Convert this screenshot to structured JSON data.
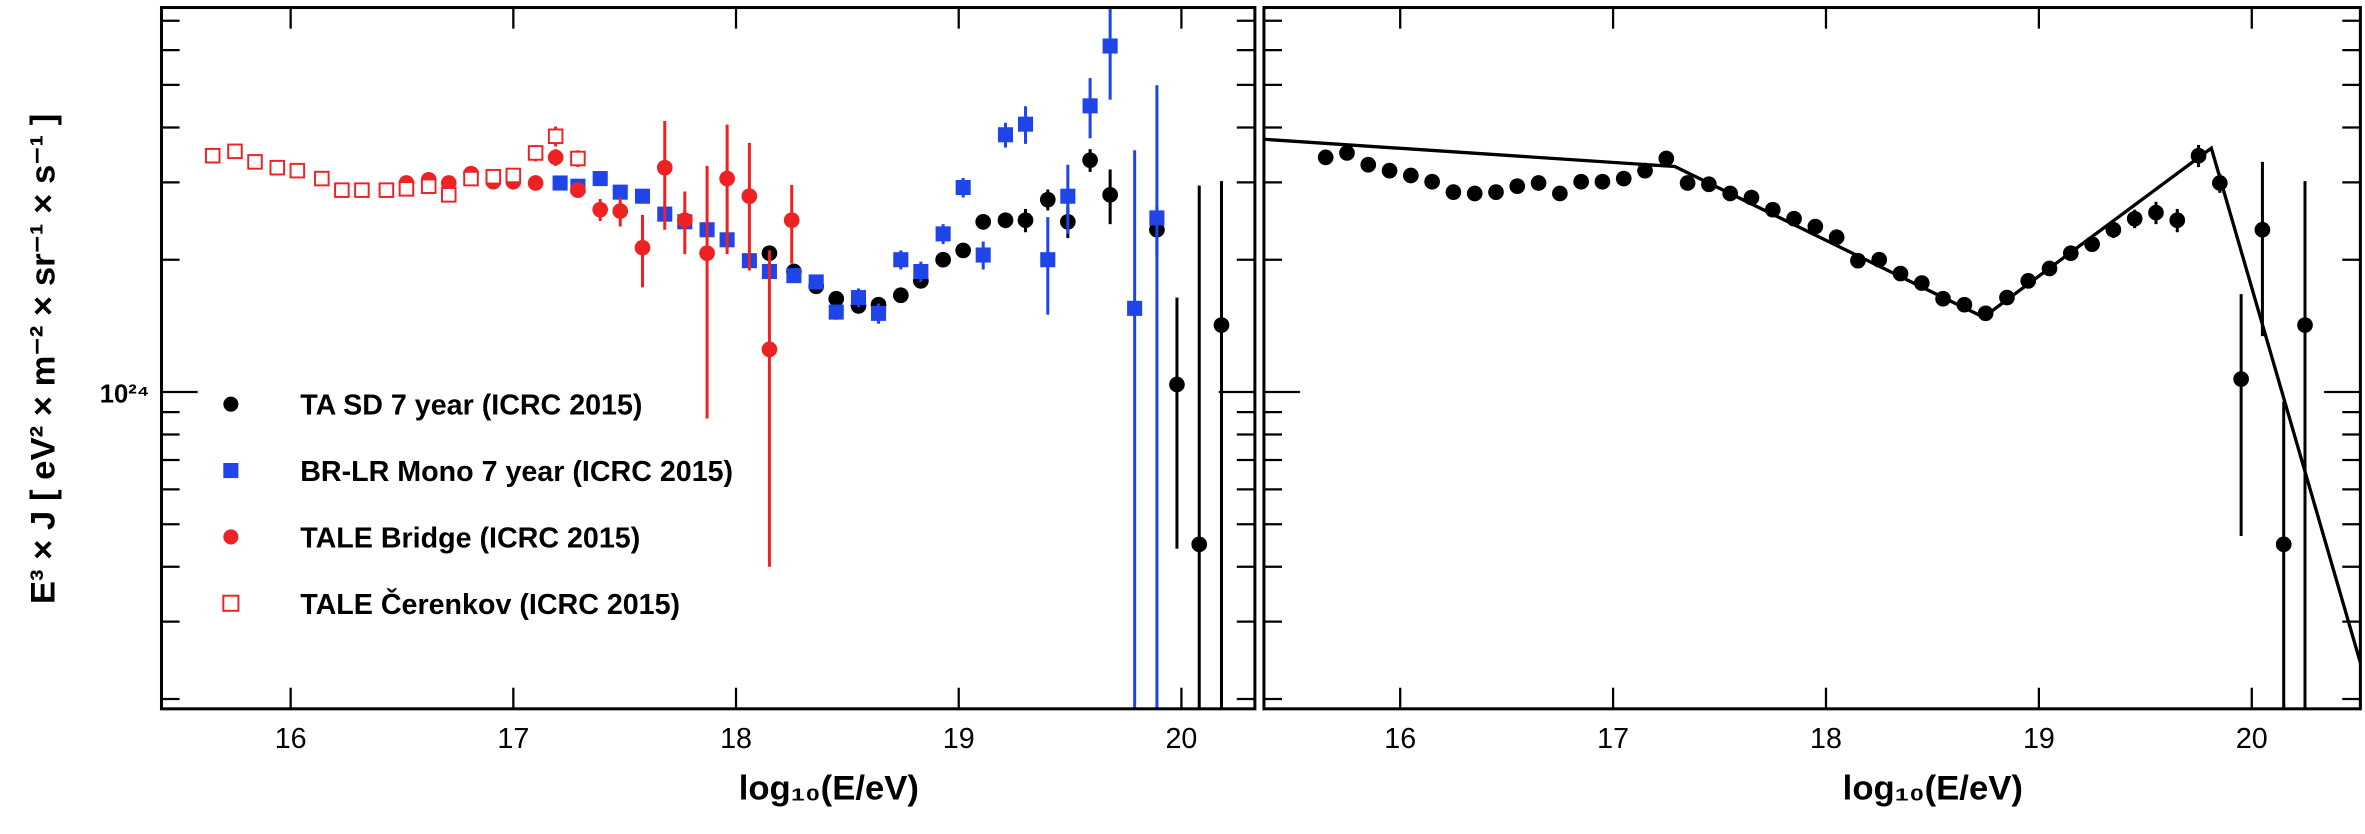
{
  "chart_data": [
    {
      "type": "scatter",
      "xlabel": "log₁₀(E/eV)",
      "ylabel": "E³ × J  [ eV² × m⁻² × sr⁻¹ × s⁻¹ ]",
      "xlim": [
        15.42,
        20.33
      ],
      "ylim": [
        1.9e+23,
        7.5e+24
      ],
      "ylog": true,
      "xticks": [
        16,
        17,
        18,
        19,
        20
      ],
      "yticks": [
        {
          "value": 1e+24,
          "label": "10²⁴"
        }
      ],
      "yminorticks": [
        2e+23,
        3e+23,
        4e+23,
        5e+23,
        6e+23,
        7e+23,
        8e+23,
        9e+23,
        2e+24,
        3e+24,
        4e+24,
        5e+24,
        6e+24,
        7e+24
      ],
      "legend": "lower left",
      "series": [
        {
          "name": "TA SD 7 year (ICRC 2015)",
          "color": "#000000",
          "marker": "circle",
          "x": [
            18.15,
            18.26,
            18.36,
            18.45,
            18.55,
            18.64,
            18.74,
            18.83,
            18.93,
            19.02,
            19.11,
            19.21,
            19.3,
            19.4,
            19.49,
            19.59,
            19.68,
            19.89,
            19.98,
            20.08,
            20.18
          ],
          "values": [
            2.07e+24,
            1.88e+24,
            1.74e+24,
            1.63e+24,
            1.57e+24,
            1.58e+24,
            1.66e+24,
            1.79e+24,
            2e+24,
            2.1e+24,
            2.44e+24,
            2.46e+24,
            2.46e+24,
            2.74e+24,
            2.44e+24,
            3.37e+24,
            2.81e+24,
            2.34e+24,
            1.04e+24,
            4.5e+23,
            1.42e+24
          ],
          "errors": [
            5e+22,
            5e+22,
            5e+22,
            5e+22,
            5e+22,
            5e+22,
            5e+22,
            5e+22,
            5e+22,
            6e+22,
            1e+23,
            1e+23,
            1.5e+23,
            1.5e+23,
            2e+23,
            2e+23,
            4e+23,
            3e+23,
            6e+23,
            2.5e+24,
            1.6e+24
          ]
        },
        {
          "name": "BR-LR Mono 7 year (ICRC 2015)",
          "color": "#1f45e8",
          "marker": "square",
          "x": [
            17.21,
            17.29,
            17.39,
            17.48,
            17.58,
            17.68,
            17.77,
            17.87,
            17.96,
            18.06,
            18.15,
            18.26,
            18.36,
            18.45,
            18.55,
            18.64,
            18.74,
            18.83,
            18.93,
            19.02,
            19.11,
            19.21,
            19.3,
            19.4,
            19.49,
            19.59,
            19.68,
            19.79,
            19.89
          ],
          "values": [
            2.99e+24,
            2.94e+24,
            3.06e+24,
            2.85e+24,
            2.79e+24,
            2.54e+24,
            2.44e+24,
            2.34e+24,
            2.22e+24,
            1.99e+24,
            1.88e+24,
            1.84e+24,
            1.78e+24,
            1.52e+24,
            1.64e+24,
            1.51e+24,
            2e+24,
            1.88e+24,
            2.29e+24,
            2.92e+24,
            2.05e+24,
            3.85e+24,
            4.07e+24,
            2e+24,
            2.79e+24,
            4.48e+24,
            6.13e+24,
            1.55e+24,
            2.49e+24
          ],
          "errors": [
            6e+22,
            6e+22,
            6e+22,
            6e+22,
            6e+22,
            6e+22,
            6e+22,
            6e+22,
            6e+22,
            6e+22,
            6e+22,
            6e+22,
            6e+22,
            6e+22,
            8e+22,
            8e+22,
            1e+23,
            1e+23,
            1.2e+23,
            1.5e+23,
            1.5e+23,
            2.5e+23,
            4e+23,
            5e+23,
            5e+23,
            7e+23,
            1.5e+24,
            2e+24,
            2.5e+24
          ]
        },
        {
          "name": "TALE Bridge (ICRC 2015)",
          "color": "#ee2222",
          "marker": "circle",
          "x": [
            16.52,
            16.62,
            16.71,
            16.81,
            16.91,
            17.0,
            17.1,
            17.19,
            17.29,
            17.39,
            17.48,
            17.58,
            17.68,
            17.77,
            17.87,
            17.96,
            18.06,
            18.15,
            18.25
          ],
          "values": [
            2.99e+24,
            3.04e+24,
            2.99e+24,
            3.14e+24,
            3.01e+24,
            3.01e+24,
            2.99e+24,
            3.42e+24,
            2.88e+24,
            2.6e+24,
            2.58e+24,
            2.13e+24,
            3.24e+24,
            2.46e+24,
            2.07e+24,
            3.06e+24,
            2.79e+24,
            1.25e+24,
            2.46e+24
          ],
          "errors": [
            5e+22,
            5e+22,
            5e+22,
            5e+22,
            5e+22,
            5e+22,
            5e+22,
            1.5e+23,
            1e+23,
            1.5e+23,
            2e+23,
            4e+23,
            9e+23,
            4e+23,
            1.2e+24,
            1e+24,
            9e+23,
            8.5e+23,
            5e+23
          ]
        },
        {
          "name": "TALE  Čerenkov (ICRC 2015)",
          "color": "#ee2222",
          "marker": "open-square",
          "x": [
            15.65,
            15.75,
            15.84,
            15.94,
            16.03,
            16.14,
            16.23,
            16.32,
            16.43,
            16.52,
            16.62,
            16.71,
            16.81,
            16.91,
            17.0,
            17.1,
            17.19,
            17.29
          ],
          "values": [
            3.45e+24,
            3.53e+24,
            3.34e+24,
            3.24e+24,
            3.19e+24,
            3.06e+24,
            2.88e+24,
            2.88e+24,
            2.88e+24,
            2.9e+24,
            2.94e+24,
            2.81e+24,
            3.06e+24,
            3.09e+24,
            3.11e+24,
            3.5e+24,
            3.82e+24,
            3.4e+24
          ],
          "errors": [
            5e+22,
            5e+22,
            5e+22,
            5e+22,
            5e+22,
            5e+22,
            5e+22,
            5e+22,
            5e+22,
            5e+22,
            5e+22,
            1e+23,
            5e+22,
            5e+22,
            6e+22,
            1.5e+23,
            2e+23,
            1.5e+23
          ]
        }
      ]
    },
    {
      "type": "scatter",
      "xlabel": "log₁₀(E/eV)",
      "xlim": [
        15.36,
        20.51
      ],
      "ylim": [
        1.9e+23,
        7.5e+24
      ],
      "ylog": true,
      "xticks": [
        16,
        17,
        18,
        19,
        20
      ],
      "yticks": [
        {
          "value": 1e+24,
          "label": ""
        }
      ],
      "yminorticks": [
        2e+23,
        3e+23,
        4e+23,
        5e+23,
        6e+23,
        7e+23,
        8e+23,
        9e+23,
        2e+24,
        3e+24,
        4e+24,
        5e+24,
        6e+24,
        7e+24
      ],
      "series": [
        {
          "color": "#000000",
          "marker": "circle",
          "x": [
            15.65,
            15.75,
            15.85,
            15.95,
            16.05,
            16.15,
            16.25,
            16.35,
            16.45,
            16.55,
            16.65,
            16.75,
            16.85,
            16.95,
            17.05,
            17.15,
            17.25,
            17.35,
            17.45,
            17.55,
            17.65,
            17.75,
            17.85,
            17.95,
            18.05,
            18.15,
            18.25,
            18.35,
            18.45,
            18.55,
            18.65,
            18.75,
            18.85,
            18.95,
            19.05,
            19.15,
            19.25,
            19.35,
            19.45,
            19.55,
            19.65,
            19.75,
            19.85,
            19.95,
            20.05,
            20.15,
            20.25
          ],
          "values": [
            3.42e+24,
            3.5e+24,
            3.29e+24,
            3.19e+24,
            3.11e+24,
            3.01e+24,
            2.85e+24,
            2.83e+24,
            2.85e+24,
            2.94e+24,
            2.99e+24,
            2.83e+24,
            3.01e+24,
            3.01e+24,
            3.06e+24,
            3.19e+24,
            3.4e+24,
            2.99e+24,
            2.97e+24,
            2.83e+24,
            2.77e+24,
            2.6e+24,
            2.48e+24,
            2.38e+24,
            2.25e+24,
            1.99e+24,
            2e+24,
            1.86e+24,
            1.77e+24,
            1.63e+24,
            1.58e+24,
            1.51e+24,
            1.64e+24,
            1.79e+24,
            1.91e+24,
            2.07e+24,
            2.17e+24,
            2.34e+24,
            2.48e+24,
            2.56e+24,
            2.46e+24,
            3.45e+24,
            2.99e+24,
            1.07e+24,
            2.34e+24,
            4.5e+23,
            1.42e+24
          ],
          "errors": [
            5e+22,
            5e+22,
            5e+22,
            5e+22,
            5e+22,
            5e+22,
            5e+22,
            5e+22,
            5e+22,
            5e+22,
            5e+22,
            5e+22,
            8e+22,
            8e+22,
            8e+22,
            8e+22,
            1.2e+23,
            8e+22,
            5e+22,
            5e+22,
            5e+22,
            5e+22,
            5e+22,
            5e+22,
            5e+22,
            5e+22,
            5e+22,
            5e+22,
            5e+22,
            5e+22,
            5e+22,
            5e+22,
            5e+22,
            5e+22,
            5e+22,
            6e+22,
            8e+22,
            1e+23,
            1.2e+23,
            1.5e+23,
            1.5e+23,
            2e+23,
            1.5e+23,
            6e+23,
            1e+24,
            5e+23,
            1.6e+24
          ]
        },
        {
          "color": "#000000",
          "marker": "line",
          "x": [
            15.36,
            17.29,
            18.74,
            19.81,
            20.51
          ],
          "values": [
            3.76e+24,
            3.26e+24,
            1.48e+24,
            3.59e+24,
            2.42e+23
          ]
        }
      ]
    }
  ]
}
